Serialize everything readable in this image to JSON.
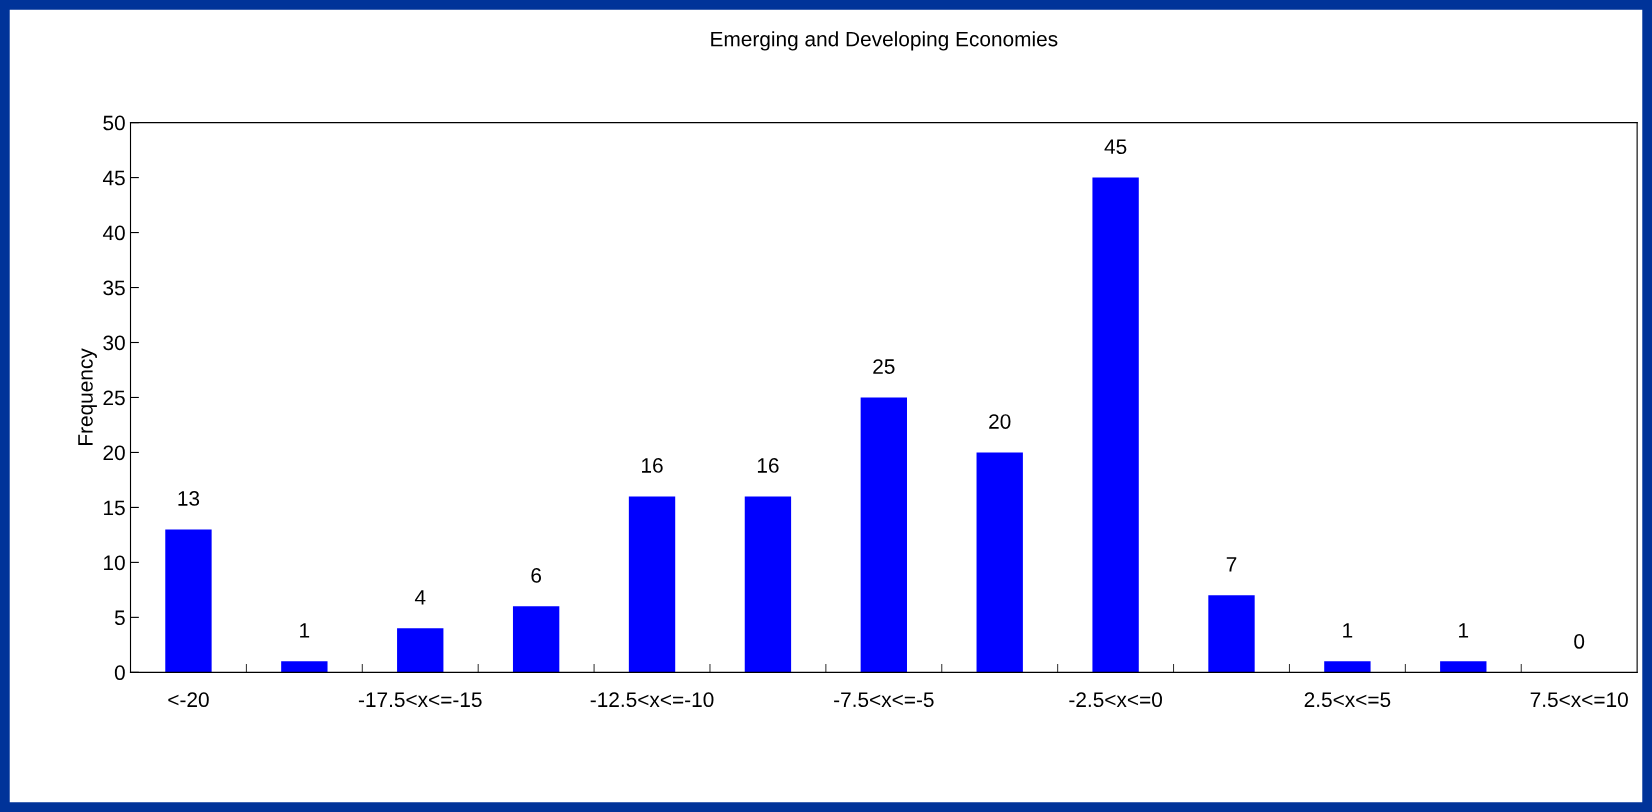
{
  "chart_data": {
    "type": "bar",
    "title": "Emerging and Developing Economies",
    "ylabel": "Frequency",
    "categories": [
      "<-20",
      null,
      "-17.5<x<=-15",
      null,
      "-12.5<x<=-10",
      null,
      "-7.5<x<=-5",
      null,
      "-2.5<x<=0",
      null,
      "2.5<x<=5",
      null,
      "7.5<x<=10"
    ],
    "values": [
      13,
      1,
      4,
      6,
      16,
      16,
      25,
      20,
      45,
      7,
      1,
      1,
      0
    ],
    "color": "#0000ff",
    "ylim": [
      0,
      50
    ],
    "yticks": [
      0,
      5,
      10,
      15,
      20,
      25,
      30,
      35,
      40,
      45,
      50
    ],
    "data_labels": true
  }
}
